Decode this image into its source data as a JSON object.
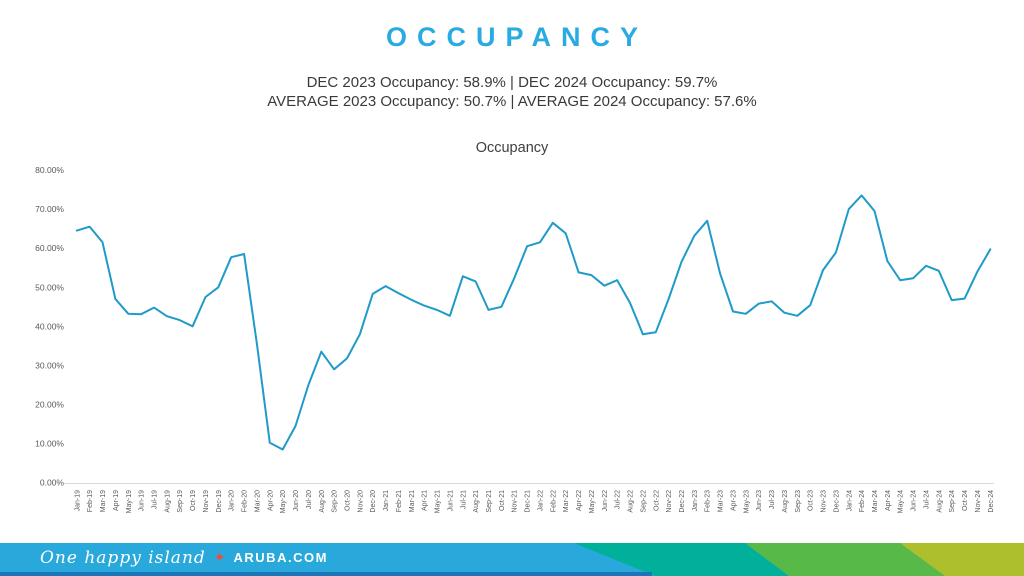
{
  "page_title": "OCCUPANCY",
  "subtitle_line1": "DEC 2023 Occupancy: 58.9% | DEC 2024 Occupancy: 59.7%",
  "subtitle_line2": "AVERAGE 2023 Occupancy: 50.7% | AVERAGE 2024 Occupancy: 57.6%",
  "colors": {
    "accent": "#29abe2",
    "subtitle_text": "#3a3a3a",
    "axis_text": "#595959",
    "axis_line": "#d9d9d9"
  },
  "chart_data": {
    "type": "line",
    "title": "Occupancy",
    "xlabel": "",
    "ylabel": "",
    "ylim": [
      0,
      80
    ],
    "grid": false,
    "legend": false,
    "line_color": "#1f9ac9",
    "y_ticks": [
      "0.00%",
      "10.00%",
      "20.00%",
      "30.00%",
      "40.00%",
      "50.00%",
      "60.00%",
      "70.00%",
      "80.00%"
    ],
    "categories": [
      "Jan-19",
      "Feb-19",
      "Mar-19",
      "Apr-19",
      "May-19",
      "Jun-19",
      "Jul-19",
      "Aug-19",
      "Sep-19",
      "Oct-19",
      "Nov-19",
      "Dec-19",
      "Jan-20",
      "Feb-20",
      "Mar-20",
      "Apr-20",
      "May-20",
      "Jun-20",
      "Jul-20",
      "Aug-20",
      "Sep-20",
      "Oct-20",
      "Nov-20",
      "Dec-20",
      "Jan-21",
      "Feb-21",
      "Mar-21",
      "Apr-21",
      "May-21",
      "Jun-21",
      "Jul-21",
      "Aug-21",
      "Sep-21",
      "Oct-21",
      "Nov-21",
      "Dec-21",
      "Jan-22",
      "Feb-22",
      "Mar-22",
      "Apr-22",
      "May-22",
      "Jun-22",
      "Jul-22",
      "Aug-22",
      "Sep-22",
      "Oct-22",
      "Nov-22",
      "Dec-22",
      "Jan-23",
      "Feb-23",
      "Mar-23",
      "Apr-23",
      "May-23",
      "Jun-23",
      "Jul-23",
      "Aug-23",
      "Sep-23",
      "Oct-23",
      "Nov-23",
      "Dec-23",
      "Jan-24",
      "Feb-24",
      "Mar-24",
      "Apr-24",
      "May-24",
      "Jun-24",
      "Jul-24",
      "Aug-24",
      "Sep-24",
      "Oct-24",
      "Nov-24",
      "Dec-24"
    ],
    "values": [
      64.5,
      65.5,
      61.5,
      47.0,
      43.2,
      43.1,
      44.8,
      42.6,
      41.6,
      40.0,
      47.5,
      50.0,
      57.7,
      58.5,
      35.5,
      10.2,
      8.5,
      14.5,
      25.0,
      33.5,
      29.0,
      31.8,
      38.0,
      48.3,
      50.3,
      48.5,
      46.8,
      45.3,
      44.2,
      42.7,
      52.8,
      51.5,
      44.2,
      45.0,
      52.3,
      60.5,
      61.5,
      66.5,
      63.8,
      53.8,
      53.1,
      50.4,
      51.8,
      46.0,
      38.0,
      38.5,
      47.0,
      56.5,
      63.2,
      67.0,
      53.5,
      43.8,
      43.2,
      45.8,
      46.4,
      43.5,
      42.7,
      45.4,
      54.4,
      58.9,
      70.0,
      73.5,
      69.5,
      56.7,
      51.8,
      52.3,
      55.5,
      54.2,
      46.7,
      47.1,
      54.0,
      59.7
    ]
  },
  "footer": {
    "tagline": "One happy island",
    "star_glyph": "✦",
    "brand": "ARUBA.COM",
    "colors": {
      "cyan": "#29a9db",
      "teal": "#00b09b",
      "green": "#56b948",
      "olive": "#adbf2d",
      "dark_blue": "#1b75b8",
      "star_red": "#ee4b3b"
    }
  }
}
